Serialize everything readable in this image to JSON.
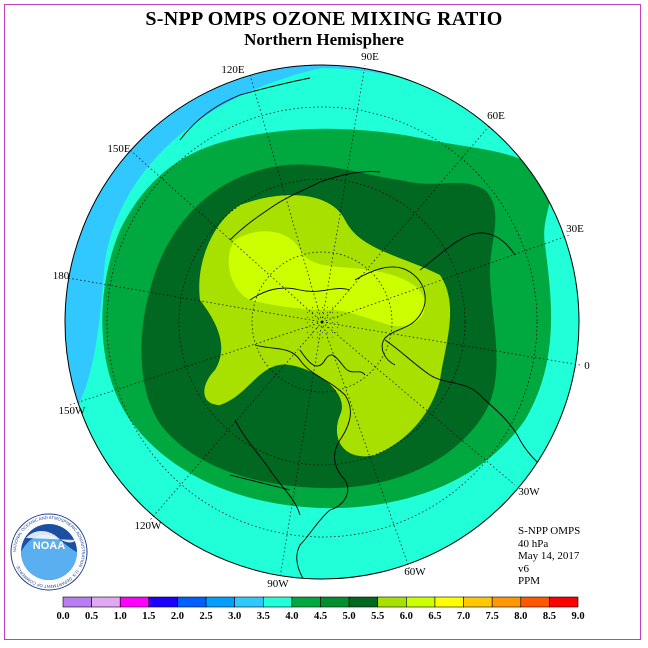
{
  "title": "S-NPP OMPS OZONE MIXING RATIO",
  "subtitle": "Northern Hemisphere",
  "info": {
    "instrument": "S-NPP OMPS",
    "level": "40 hPa",
    "date": "May 14, 2017",
    "version": "v6",
    "units": "PPM"
  },
  "logo": {
    "text": "NOAA",
    "ring_text": "NATIONAL OCEANIC AND ATMOSPHERIC ADMINISTRATION · U.S. DEPARTMENT OF COMMERCE"
  },
  "longitude_labels": [
    "90E",
    "60E",
    "30E",
    "0",
    "30W",
    "60W",
    "90W",
    "120W",
    "150W",
    "180",
    "150E",
    "120E"
  ],
  "colorbar": {
    "ticks": [
      "0.0",
      "0.5",
      "1.0",
      "1.5",
      "2.0",
      "2.5",
      "3.0",
      "3.5",
      "4.0",
      "4.5",
      "5.0",
      "5.5",
      "6.0",
      "6.5",
      "7.0",
      "7.5",
      "8.0",
      "8.5",
      "9.0"
    ],
    "colors": [
      "#b87ef0",
      "#e0a8f0",
      "#ff00ff",
      "#1c00ff",
      "#0060ff",
      "#00a0ff",
      "#30c8ff",
      "#20ffd8",
      "#00a840",
      "#009030",
      "#006820",
      "#a8e000",
      "#ccff00",
      "#ffff00",
      "#ffc800",
      "#ff9800",
      "#ff5800",
      "#ff0000",
      "#8b5a3c"
    ]
  },
  "map_colors": {
    "ocean_ring": "#30c8ff",
    "band_35_40": "#20ffd8",
    "band_40_45": "#00a840",
    "band_45_50": "#006820",
    "band_50_55": "#a8e000",
    "band_55_60": "#ccff00",
    "pole_missing": "#ffffff"
  }
}
